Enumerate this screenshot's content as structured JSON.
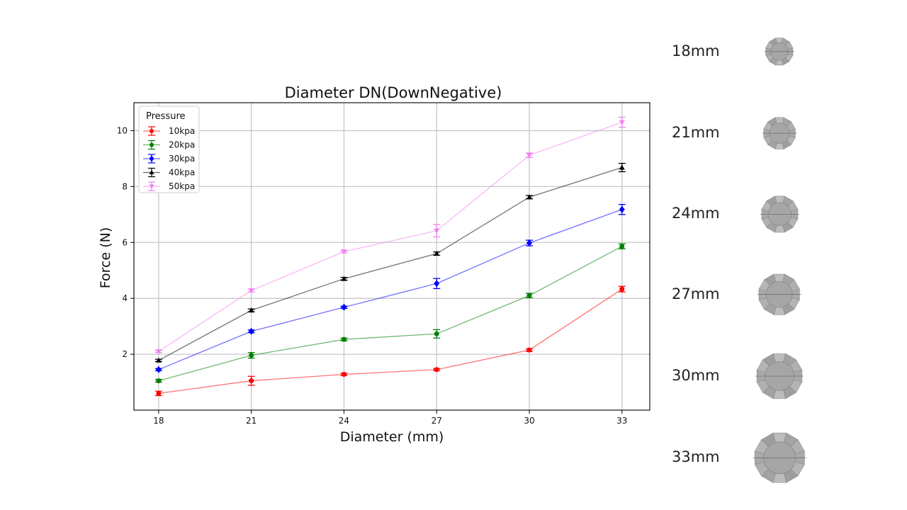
{
  "chart_data": {
    "type": "line",
    "title": "Diameter DN(DownNegative)",
    "xlabel": "Diameter (mm)",
    "ylabel": "Force (N)",
    "x": [
      18,
      21,
      24,
      27,
      30,
      33
    ],
    "xticks": [
      "18",
      "21",
      "24",
      "27",
      "30",
      "33"
    ],
    "yticks": [
      "2",
      "4",
      "6",
      "8",
      "10"
    ],
    "xlim": [
      17.2,
      33.9
    ],
    "ylim": [
      0,
      11
    ],
    "grid": true,
    "legend": {
      "title": "Pressure",
      "placement": "top-left"
    },
    "series": [
      {
        "name": "10kpa",
        "color": "#ff0000",
        "marker": "circle",
        "values": [
          0.6,
          1.05,
          1.28,
          1.45,
          2.15,
          4.33
        ],
        "errors": [
          0.08,
          0.16,
          0.04,
          0.04,
          0.05,
          0.1
        ]
      },
      {
        "name": "20kpa",
        "color": "#008000",
        "marker": "circle",
        "values": [
          1.05,
          1.96,
          2.53,
          2.73,
          4.1,
          5.86
        ],
        "errors": [
          0.05,
          0.1,
          0.05,
          0.15,
          0.08,
          0.09
        ]
      },
      {
        "name": "30kpa",
        "color": "#0000ff",
        "marker": "diamond",
        "values": [
          1.45,
          2.82,
          3.68,
          4.53,
          5.98,
          7.18
        ],
        "errors": [
          0.04,
          0.05,
          0.04,
          0.18,
          0.1,
          0.18
        ]
      },
      {
        "name": "40kpa",
        "color": "#000000",
        "marker": "triangle-up",
        "values": [
          1.78,
          3.57,
          4.7,
          5.6,
          7.62,
          8.68
        ],
        "errors": [
          0.04,
          0.05,
          0.05,
          0.06,
          0.06,
          0.15
        ]
      },
      {
        "name": "50kpa",
        "color": "#ee82ee",
        "marker": "triangle-down",
        "values": [
          2.1,
          4.28,
          5.67,
          6.42,
          9.12,
          10.3
        ],
        "errors": [
          0.04,
          0.05,
          0.04,
          0.22,
          0.08,
          0.18
        ]
      }
    ]
  },
  "size_legend": [
    {
      "label": "18mm",
      "diameter": 18
    },
    {
      "label": "21mm",
      "diameter": 21
    },
    {
      "label": "24mm",
      "diameter": 24
    },
    {
      "label": "27mm",
      "diameter": 27
    },
    {
      "label": "30mm",
      "diameter": 30
    },
    {
      "label": "33mm",
      "diameter": 33
    }
  ]
}
